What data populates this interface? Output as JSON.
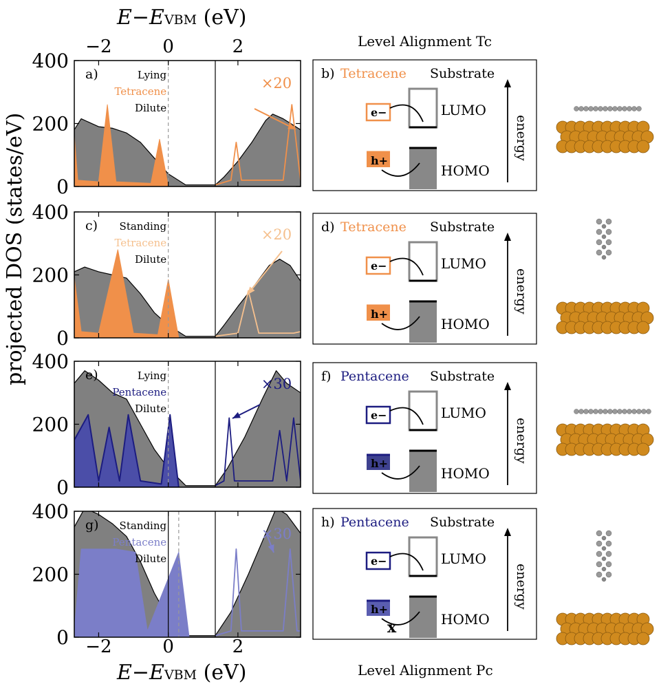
{
  "figure": {
    "top_axis": {
      "title_pre": "E−E",
      "title_sub": "VBM",
      "title_post": " (eV)",
      "ticks": [
        "−2",
        "0",
        "2"
      ]
    },
    "bottom_axis": {
      "title_pre": "E−E",
      "title_sub": "VBM",
      "title_post": " (eV)",
      "ticks": [
        "−2",
        "0",
        "2"
      ]
    },
    "ylabel": "projected DOS (states/eV)",
    "yticks": [
      "0",
      "200",
      "400"
    ],
    "align_title_top": "Level Alignment Tc",
    "align_title_bottom": "Level Alignment Pc"
  },
  "colors": {
    "tetracene": "#f0904a",
    "tetracene_light": "#f5c08e",
    "pentacene": "#1c1c80",
    "pentacene_light": "#7b7ec8",
    "substrate": "#808080",
    "gold": "#d08a1e"
  },
  "panels": [
    {
      "label": "a)",
      "legend": [
        "Lying",
        "Tetracene",
        "Dilute"
      ],
      "scale": "×20"
    },
    {
      "label": "c)",
      "legend": [
        "Standing",
        "Tetracene",
        "Dilute"
      ],
      "scale": "×20"
    },
    {
      "label": "e)",
      "legend": [
        "Lying",
        "Pentacene",
        "Dilute"
      ],
      "scale": "×30"
    },
    {
      "label": "g)",
      "legend": [
        "Standing",
        "Pentacene",
        "Dilute"
      ],
      "scale": "×30"
    }
  ],
  "schematics": [
    {
      "label": "b)",
      "molecule": "Tetracene",
      "substrate": "Substrate",
      "lumo": "LUMO",
      "homo": "HOMO",
      "energy": "energy",
      "electron": "e−",
      "hole": "h+",
      "blocked": ""
    },
    {
      "label": "d)",
      "molecule": "Tetracene",
      "substrate": "Substrate",
      "lumo": "LUMO",
      "homo": "HOMO",
      "energy": "energy",
      "electron": "e−",
      "hole": "h+",
      "blocked": ""
    },
    {
      "label": "f)",
      "molecule": "Pentacene",
      "substrate": "Substrate",
      "lumo": "LUMO",
      "homo": "HOMO",
      "energy": "energy",
      "electron": "e−",
      "hole": "h+",
      "blocked": ""
    },
    {
      "label": "h)",
      "molecule": "Pentacene",
      "substrate": "Substrate",
      "lumo": "LUMO",
      "homo": "HOMO",
      "energy": "energy",
      "electron": "e−",
      "hole": "h+",
      "blocked": "x"
    }
  ],
  "chart_data": [
    {
      "type": "area",
      "panel": "a",
      "xlim": [
        -2.7,
        3.8
      ],
      "ylim": [
        0,
        400
      ],
      "xlabel": "E−E_VBM (eV)",
      "ylabel": "projected DOS (states/eV)",
      "vlines": [
        {
          "x": 0,
          "style": "dashed"
        },
        {
          "x": 1.35,
          "style": "solid"
        }
      ],
      "series": [
        {
          "name": "Substrate",
          "style": "filled-gray",
          "x": [
            -2.7,
            -2.5,
            -2.3,
            -2.0,
            -1.6,
            -1.2,
            -0.8,
            -0.4,
            0,
            0.5,
            1.0,
            1.35,
            1.6,
            2.0,
            2.4,
            2.8,
            3.0,
            3.3,
            3.8
          ],
          "y": [
            180,
            215,
            205,
            190,
            185,
            170,
            140,
            90,
            40,
            5,
            5,
            5,
            30,
            80,
            140,
            210,
            230,
            215,
            180
          ]
        },
        {
          "name": "Tetracene occupied",
          "style": "filled-orange",
          "x": [
            -2.7,
            -2.6,
            -2.0,
            -1.75,
            -1.5,
            -0.5,
            -0.25,
            0
          ],
          "y": [
            160,
            20,
            15,
            260,
            15,
            10,
            150,
            0
          ]
        },
        {
          "name": "Tetracene unoccupied ×20",
          "style": "line-orange",
          "x": [
            1.35,
            1.8,
            1.95,
            2.1,
            3.3,
            3.55,
            3.8
          ],
          "y": [
            5,
            20,
            140,
            20,
            20,
            260,
            20
          ]
        }
      ]
    },
    {
      "type": "area",
      "panel": "c",
      "xlim": [
        -2.7,
        3.8
      ],
      "ylim": [
        0,
        400
      ],
      "xlabel": "E−E_VBM (eV)",
      "ylabel": "projected DOS (states/eV)",
      "vlines": [
        {
          "x": 0,
          "style": "dashed"
        },
        {
          "x": 1.35,
          "style": "solid"
        }
      ],
      "series": [
        {
          "name": "Substrate",
          "style": "filled-gray",
          "x": [
            -2.7,
            -2.4,
            -2.0,
            -1.6,
            -1.2,
            -0.8,
            -0.4,
            0,
            0.5,
            1.0,
            1.35,
            1.6,
            2.0,
            2.5,
            2.9,
            3.2,
            3.5,
            3.8
          ],
          "y": [
            210,
            225,
            210,
            200,
            190,
            140,
            80,
            40,
            5,
            5,
            5,
            40,
            100,
            170,
            230,
            250,
            230,
            180
          ]
        },
        {
          "name": "Tetracene occupied",
          "style": "filled-orange",
          "x": [
            -2.7,
            -2.5,
            -2.0,
            -1.45,
            -1.0,
            -0.3,
            0,
            0.3
          ],
          "y": [
            190,
            20,
            15,
            280,
            15,
            10,
            185,
            0
          ]
        },
        {
          "name": "Tetracene unoccupied ×20",
          "style": "line-lightorange",
          "x": [
            1.35,
            2.0,
            2.3,
            2.6,
            3.6,
            3.8
          ],
          "y": [
            5,
            15,
            150,
            15,
            15,
            20
          ]
        }
      ]
    },
    {
      "type": "area",
      "panel": "e",
      "xlim": [
        -2.7,
        3.8
      ],
      "ylim": [
        0,
        400
      ],
      "xlabel": "E−E_VBM (eV)",
      "ylabel": "projected DOS (states/eV)",
      "vlines": [
        {
          "x": 0,
          "style": "dashed"
        },
        {
          "x": 1.35,
          "style": "solid"
        }
      ],
      "series": [
        {
          "name": "Substrate",
          "style": "filled-gray",
          "x": [
            -2.7,
            -2.4,
            -2.0,
            -1.6,
            -1.2,
            -0.8,
            -0.4,
            0,
            0.5,
            1.0,
            1.35,
            1.7,
            2.2,
            2.7,
            3.1,
            3.4,
            3.8
          ],
          "y": [
            330,
            370,
            340,
            300,
            280,
            200,
            120,
            60,
            5,
            5,
            5,
            60,
            160,
            280,
            370,
            330,
            300
          ]
        },
        {
          "name": "Pentacene occupied",
          "style": "filled-blue",
          "x": [
            -2.7,
            -2.3,
            -2.0,
            -1.7,
            -1.4,
            -1.15,
            -0.8,
            -0.2,
            0.05,
            0.3
          ],
          "y": [
            150,
            230,
            20,
            190,
            20,
            230,
            20,
            10,
            230,
            0
          ]
        },
        {
          "name": "Pentacene unoccupied ×30",
          "style": "line-blue",
          "x": [
            1.35,
            1.6,
            1.75,
            1.9,
            3.0,
            3.2,
            3.4,
            3.6,
            3.8
          ],
          "y": [
            5,
            20,
            220,
            20,
            20,
            180,
            20,
            220,
            20
          ]
        }
      ]
    },
    {
      "type": "area",
      "panel": "g",
      "xlim": [
        -2.7,
        3.8
      ],
      "ylim": [
        0,
        400
      ],
      "xlabel": "E−E_VBM (eV)",
      "ylabel": "projected DOS (states/eV)",
      "vlines": [
        {
          "x": 0,
          "style": "solid"
        },
        {
          "x": 0.3,
          "style": "dashed"
        },
        {
          "x": 1.35,
          "style": "solid"
        }
      ],
      "series": [
        {
          "name": "Substrate",
          "style": "filled-gray",
          "x": [
            -2.7,
            -2.4,
            -2.0,
            -1.6,
            -1.2,
            -0.8,
            -0.4,
            0,
            0.5,
            1.0,
            1.35,
            1.8,
            2.3,
            2.8,
            3.1,
            3.4,
            3.8
          ],
          "y": [
            350,
            410,
            390,
            360,
            320,
            240,
            140,
            60,
            5,
            5,
            5,
            80,
            200,
            330,
            410,
            390,
            330
          ]
        },
        {
          "name": "Pentacene occupied",
          "style": "filled-lightblue",
          "x": [
            -2.7,
            -2.5,
            -2.05,
            -1.5,
            -0.95,
            -0.6,
            0.3,
            0.6
          ],
          "y": [
            20,
            280,
            280,
            280,
            270,
            20,
            270,
            0
          ]
        },
        {
          "name": "Pentacene unoccupied ×30",
          "style": "line-lightblue",
          "x": [
            1.35,
            1.8,
            1.95,
            2.1,
            3.3,
            3.5,
            3.7,
            3.8
          ],
          "y": [
            5,
            20,
            280,
            20,
            20,
            280,
            20,
            20
          ]
        }
      ]
    }
  ]
}
